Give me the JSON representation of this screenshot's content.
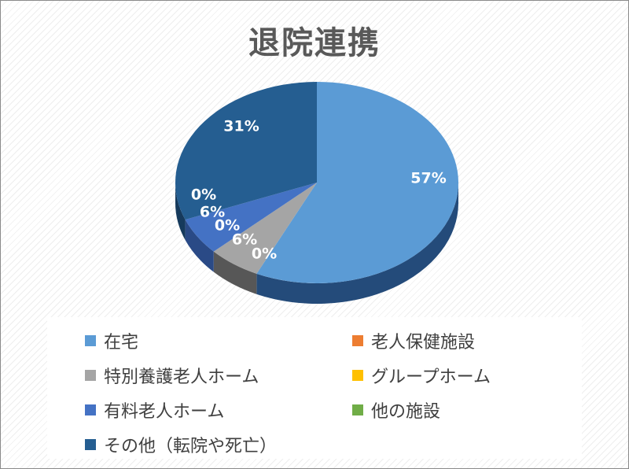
{
  "chart_data": {
    "type": "pie",
    "title": "退院連携",
    "categories": [
      "在宅",
      "老人保健施設",
      "特別養護老人ホーム",
      "グループホーム",
      "有料老人ホーム",
      "他の施設",
      "その他（転院や死亡）"
    ],
    "values": [
      57,
      0,
      6,
      0,
      6,
      0,
      31
    ],
    "labels": [
      "57%",
      "0%",
      "6%",
      "0%",
      "6%",
      "0%",
      "31%"
    ],
    "colors": [
      "#5b9bd5",
      "#ed7d31",
      "#a5a5a5",
      "#ffc000",
      "#4472c4",
      "#70ad47",
      "#255e91"
    ],
    "side_colors": [
      "#244b7a",
      "#9e4f1c",
      "#575757",
      "#9e7600",
      "#2a4a86",
      "#436c2a",
      "#163a5c"
    ],
    "legend_placement": "bottom"
  }
}
